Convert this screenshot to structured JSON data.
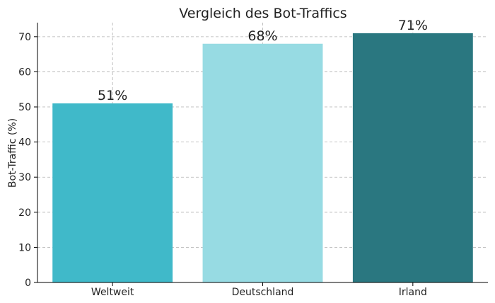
{
  "chart_data": {
    "type": "bar",
    "title": "Vergleich des Bot-Traffics",
    "xlabel": "",
    "ylabel": "Bot-Traffic (%)",
    "categories": [
      "Weltweit",
      "Deutschland",
      "Irland"
    ],
    "values": [
      51,
      68,
      71
    ],
    "data_labels": [
      "51%",
      "68%",
      "71%"
    ],
    "colors": [
      "#40b9c9",
      "#97dbe3",
      "#2a7780"
    ],
    "ylim": [
      0,
      74
    ],
    "yticks": [
      0,
      10,
      20,
      30,
      40,
      50,
      60,
      70
    ],
    "grid": true,
    "legend": "none"
  }
}
